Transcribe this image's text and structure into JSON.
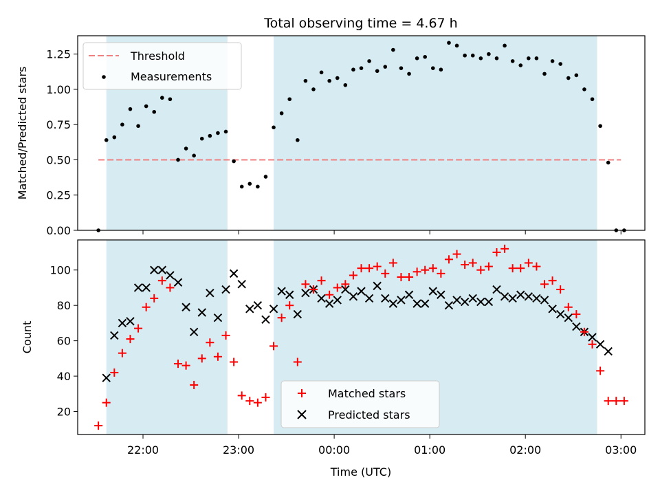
{
  "figure": {
    "title": "Total observing time = 4.67 h",
    "xlabel": "Time (UTC)"
  },
  "chart_data": [
    {
      "type": "scatter",
      "panel": "top",
      "ylabel": "Matched/Predicted stars",
      "ylim": [
        0,
        1.38
      ],
      "xlim": [
        "21:19",
        "03:15"
      ],
      "yticks": [
        "0.00",
        "0.25",
        "0.50",
        "0.75",
        "1.00",
        "1.25"
      ],
      "threshold": {
        "name": "Threshold",
        "value": 0.5,
        "x_range": [
          "21:32",
          "03:00"
        ]
      },
      "legend": {
        "position": "upper-left",
        "entries": [
          "Threshold",
          "Measurements"
        ]
      },
      "series": [
        {
          "name": "Measurements",
          "points": [
            [
              "21:32",
              0.0
            ],
            [
              "21:37",
              0.64
            ],
            [
              "21:42",
              0.66
            ],
            [
              "21:47",
              0.75
            ],
            [
              "21:52",
              0.86
            ],
            [
              "21:57",
              0.74
            ],
            [
              "22:02",
              0.88
            ],
            [
              "22:07",
              0.84
            ],
            [
              "22:12",
              0.94
            ],
            [
              "22:17",
              0.93
            ],
            [
              "22:22",
              0.5
            ],
            [
              "22:27",
              0.58
            ],
            [
              "22:32",
              0.53
            ],
            [
              "22:37",
              0.65
            ],
            [
              "22:42",
              0.67
            ],
            [
              "22:47",
              0.69
            ],
            [
              "22:52",
              0.7
            ],
            [
              "22:57",
              0.49
            ],
            [
              "23:02",
              0.31
            ],
            [
              "23:07",
              0.33
            ],
            [
              "23:12",
              0.31
            ],
            [
              "23:17",
              0.38
            ],
            [
              "23:22",
              0.73
            ],
            [
              "23:27",
              0.83
            ],
            [
              "23:32",
              0.93
            ],
            [
              "23:37",
              0.64
            ],
            [
              "23:42",
              1.06
            ],
            [
              "23:47",
              1.0
            ],
            [
              "23:52",
              1.12
            ],
            [
              "23:57",
              1.06
            ],
            [
              "00:02",
              1.08
            ],
            [
              "00:07",
              1.03
            ],
            [
              "00:12",
              1.14
            ],
            [
              "00:17",
              1.15
            ],
            [
              "00:22",
              1.2
            ],
            [
              "00:27",
              1.13
            ],
            [
              "00:32",
              1.16
            ],
            [
              "00:37",
              1.28
            ],
            [
              "00:42",
              1.15
            ],
            [
              "00:47",
              1.11
            ],
            [
              "00:52",
              1.22
            ],
            [
              "00:57",
              1.23
            ],
            [
              "01:02",
              1.15
            ],
            [
              "01:07",
              1.14
            ],
            [
              "01:12",
              1.33
            ],
            [
              "01:17",
              1.31
            ],
            [
              "01:22",
              1.24
            ],
            [
              "01:27",
              1.24
            ],
            [
              "01:32",
              1.22
            ],
            [
              "01:37",
              1.25
            ],
            [
              "01:42",
              1.22
            ],
            [
              "01:47",
              1.31
            ],
            [
              "01:52",
              1.2
            ],
            [
              "01:57",
              1.17
            ],
            [
              "02:02",
              1.22
            ],
            [
              "02:07",
              1.22
            ],
            [
              "02:12",
              1.11
            ],
            [
              "02:17",
              1.2
            ],
            [
              "02:22",
              1.18
            ],
            [
              "02:27",
              1.08
            ],
            [
              "02:32",
              1.1
            ],
            [
              "02:37",
              1.0
            ],
            [
              "02:42",
              0.93
            ],
            [
              "02:47",
              0.74
            ],
            [
              "02:52",
              0.48
            ],
            [
              "02:57",
              0.0
            ],
            [
              "03:02",
              0.0
            ]
          ]
        }
      ],
      "shaded_ranges": [
        [
          "21:37",
          "22:53"
        ],
        [
          "23:22",
          "02:45"
        ]
      ],
      "colors": {
        "shade": "#add8e6",
        "threshold": "#f08080",
        "points": "#000000"
      }
    },
    {
      "type": "scatter",
      "panel": "bottom",
      "ylabel": "Count",
      "ylim": [
        7,
        117
      ],
      "xlim": [
        "21:19",
        "03:15"
      ],
      "yticks": [
        "20",
        "40",
        "60",
        "80",
        "100"
      ],
      "xticks": [
        "22:00",
        "23:00",
        "00:00",
        "01:00",
        "02:00",
        "03:00"
      ],
      "legend": {
        "position": "lower-center",
        "entries": [
          "Matched stars",
          "Predicted stars"
        ]
      },
      "series": [
        {
          "name": "Matched stars",
          "marker": "+",
          "color": "#ff0000",
          "points": [
            [
              "21:32",
              12
            ],
            [
              "21:37",
              25
            ],
            [
              "21:42",
              42
            ],
            [
              "21:47",
              53
            ],
            [
              "21:52",
              61
            ],
            [
              "21:57",
              67
            ],
            [
              "22:02",
              79
            ],
            [
              "22:07",
              84
            ],
            [
              "22:12",
              94
            ],
            [
              "22:17",
              90
            ],
            [
              "22:22",
              47
            ],
            [
              "22:27",
              46
            ],
            [
              "22:32",
              35
            ],
            [
              "22:37",
              50
            ],
            [
              "22:42",
              59
            ],
            [
              "22:47",
              51
            ],
            [
              "22:52",
              63
            ],
            [
              "22:57",
              48
            ],
            [
              "23:02",
              29
            ],
            [
              "23:07",
              26
            ],
            [
              "23:12",
              25
            ],
            [
              "23:17",
              28
            ],
            [
              "23:22",
              57
            ],
            [
              "23:27",
              73
            ],
            [
              "23:32",
              80
            ],
            [
              "23:37",
              48
            ],
            [
              "23:42",
              92
            ],
            [
              "23:47",
              89
            ],
            [
              "23:52",
              94
            ],
            [
              "23:57",
              86
            ],
            [
              "00:02",
              90
            ],
            [
              "00:07",
              92
            ],
            [
              "00:12",
              97
            ],
            [
              "00:17",
              101
            ],
            [
              "00:22",
              101
            ],
            [
              "00:27",
              102
            ],
            [
              "00:32",
              98
            ],
            [
              "00:37",
              104
            ],
            [
              "00:42",
              96
            ],
            [
              "00:47",
              96
            ],
            [
              "00:52",
              99
            ],
            [
              "00:57",
              100
            ],
            [
              "01:02",
              101
            ],
            [
              "01:07",
              98
            ],
            [
              "01:12",
              106
            ],
            [
              "01:17",
              109
            ],
            [
              "01:22",
              103
            ],
            [
              "01:27",
              104
            ],
            [
              "01:32",
              100
            ],
            [
              "01:37",
              102
            ],
            [
              "01:42",
              110
            ],
            [
              "01:47",
              112
            ],
            [
              "01:52",
              101
            ],
            [
              "01:57",
              101
            ],
            [
              "02:02",
              104
            ],
            [
              "02:07",
              102
            ],
            [
              "02:12",
              92
            ],
            [
              "02:17",
              94
            ],
            [
              "02:22",
              89
            ],
            [
              "02:27",
              79
            ],
            [
              "02:32",
              75
            ],
            [
              "02:37",
              65
            ],
            [
              "02:42",
              58
            ],
            [
              "02:47",
              43
            ],
            [
              "02:52",
              26
            ],
            [
              "02:57",
              26
            ],
            [
              "03:02",
              26
            ]
          ]
        },
        {
          "name": "Predicted stars",
          "marker": "x",
          "color": "#000000",
          "points": [
            [
              "21:37",
              39
            ],
            [
              "21:42",
              63
            ],
            [
              "21:47",
              70
            ],
            [
              "21:52",
              71
            ],
            [
              "21:57",
              90
            ],
            [
              "22:02",
              90
            ],
            [
              "22:07",
              100
            ],
            [
              "22:12",
              100
            ],
            [
              "22:17",
              97
            ],
            [
              "22:22",
              93
            ],
            [
              "22:27",
              79
            ],
            [
              "22:32",
              65
            ],
            [
              "22:37",
              76
            ],
            [
              "22:42",
              87
            ],
            [
              "22:47",
              73
            ],
            [
              "22:52",
              89
            ],
            [
              "22:57",
              98
            ],
            [
              "23:02",
              92
            ],
            [
              "23:07",
              78
            ],
            [
              "23:12",
              80
            ],
            [
              "23:17",
              72
            ],
            [
              "23:22",
              78
            ],
            [
              "23:27",
              88
            ],
            [
              "23:32",
              86
            ],
            [
              "23:37",
              75
            ],
            [
              "23:42",
              87
            ],
            [
              "23:47",
              89
            ],
            [
              "23:52",
              84
            ],
            [
              "23:57",
              81
            ],
            [
              "00:02",
              83
            ],
            [
              "00:07",
              89
            ],
            [
              "00:12",
              85
            ],
            [
              "00:17",
              88
            ],
            [
              "00:22",
              84
            ],
            [
              "00:27",
              91
            ],
            [
              "00:32",
              84
            ],
            [
              "00:37",
              81
            ],
            [
              "00:42",
              83
            ],
            [
              "00:47",
              86
            ],
            [
              "00:52",
              81
            ],
            [
              "00:57",
              81
            ],
            [
              "01:02",
              88
            ],
            [
              "01:07",
              86
            ],
            [
              "01:12",
              80
            ],
            [
              "01:17",
              83
            ],
            [
              "01:22",
              82
            ],
            [
              "01:27",
              84
            ],
            [
              "01:32",
              82
            ],
            [
              "01:37",
              82
            ],
            [
              "01:42",
              89
            ],
            [
              "01:47",
              85
            ],
            [
              "01:52",
              84
            ],
            [
              "01:57",
              86
            ],
            [
              "02:02",
              85
            ],
            [
              "02:07",
              84
            ],
            [
              "02:12",
              83
            ],
            [
              "02:17",
              78
            ],
            [
              "02:22",
              75
            ],
            [
              "02:27",
              73
            ],
            [
              "02:32",
              68
            ],
            [
              "02:37",
              65
            ],
            [
              "02:42",
              62
            ],
            [
              "02:47",
              58
            ],
            [
              "02:52",
              54
            ]
          ]
        }
      ],
      "shaded_ranges": [
        [
          "21:37",
          "22:53"
        ],
        [
          "23:22",
          "02:45"
        ]
      ],
      "colors": {
        "shade": "#add8e6"
      }
    }
  ]
}
